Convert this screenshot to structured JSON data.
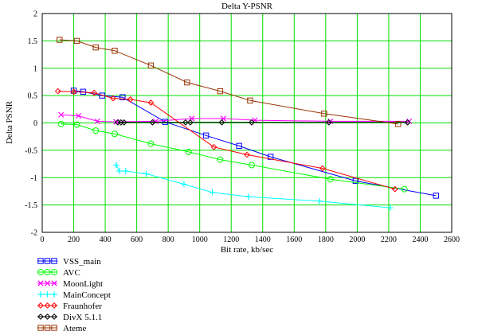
{
  "chart_data": {
    "type": "line",
    "title": "Delta Y-PSNR",
    "xlabel": "Bit rate, kb/sec",
    "ylabel": "Delta PSNR",
    "xlim": [
      0,
      2600
    ],
    "ylim": [
      -2,
      2
    ],
    "xticks": [
      0,
      200,
      400,
      600,
      800,
      1000,
      1200,
      1400,
      1600,
      1800,
      2000,
      2200,
      2400,
      2600
    ],
    "yticks": [
      2,
      1.5,
      1,
      0.5,
      0,
      -0.5,
      -1,
      -1.5,
      -2
    ],
    "grid": true,
    "legend_position": "bottom-left",
    "series": [
      {
        "name": "VSS_main",
        "color": "#0000ff",
        "marker": "square",
        "points": [
          [
            200,
            0.59
          ],
          [
            260,
            0.57
          ],
          [
            380,
            0.5
          ],
          [
            510,
            0.47
          ],
          [
            780,
            0.02
          ],
          [
            1040,
            -0.23
          ],
          [
            1250,
            -0.42
          ],
          [
            1450,
            -0.62
          ],
          [
            1990,
            -1.06
          ],
          [
            2500,
            -1.33
          ]
        ]
      },
      {
        "name": "AVC",
        "color": "#00ff00",
        "marker": "circle",
        "points": [
          [
            120,
            -0.02
          ],
          [
            220,
            -0.03
          ],
          [
            340,
            -0.14
          ],
          [
            460,
            -0.2
          ],
          [
            690,
            -0.38
          ],
          [
            930,
            -0.53
          ],
          [
            1130,
            -0.67
          ],
          [
            1330,
            -0.77
          ],
          [
            1830,
            -1.03
          ],
          [
            2300,
            -1.21
          ]
        ]
      },
      {
        "name": "MoonLight",
        "color": "#ff00ff",
        "marker": "x",
        "points": [
          [
            120,
            0.15
          ],
          [
            230,
            0.13
          ],
          [
            350,
            0.03
          ],
          [
            470,
            0.02
          ],
          [
            720,
            0.03
          ],
          [
            950,
            0.08
          ],
          [
            1150,
            0.08
          ],
          [
            1350,
            0.05
          ],
          [
            1830,
            0.03
          ],
          [
            2330,
            0.03
          ]
        ]
      },
      {
        "name": "MainConcept",
        "color": "#00ffff",
        "marker": "plus",
        "points": [
          [
            470,
            -0.77
          ],
          [
            490,
            -0.88
          ],
          [
            530,
            -0.88
          ],
          [
            660,
            -0.93
          ],
          [
            900,
            -1.12
          ],
          [
            1080,
            -1.27
          ],
          [
            1310,
            -1.35
          ],
          [
            1760,
            -1.43
          ],
          [
            2210,
            -1.55
          ]
        ]
      },
      {
        "name": "Fraunhofer",
        "color": "#ff0000",
        "marker": "diamond",
        "points": [
          [
            100,
            0.58
          ],
          [
            200,
            0.57
          ],
          [
            330,
            0.55
          ],
          [
            450,
            0.45
          ],
          [
            560,
            0.43
          ],
          [
            690,
            0.37
          ],
          [
            1090,
            -0.44
          ],
          [
            1300,
            -0.58
          ],
          [
            1780,
            -0.83
          ],
          [
            2240,
            -1.21
          ]
        ]
      },
      {
        "name": "DivX 5.1.1",
        "color": "#000000",
        "marker": "diamond",
        "points": [
          [
            480,
            0.01
          ],
          [
            500,
            0.01
          ],
          [
            520,
            0.01
          ],
          [
            700,
            0.01
          ],
          [
            910,
            0.01
          ],
          [
            940,
            0.01
          ],
          [
            1140,
            0.01
          ],
          [
            1330,
            0.01
          ],
          [
            1820,
            0.01
          ],
          [
            2320,
            0.01
          ]
        ]
      },
      {
        "name": "Ateme",
        "color": "#993300",
        "marker": "square",
        "points": [
          [
            110,
            1.52
          ],
          [
            220,
            1.5
          ],
          [
            340,
            1.38
          ],
          [
            460,
            1.32
          ],
          [
            690,
            1.05
          ],
          [
            920,
            0.74
          ],
          [
            1130,
            0.58
          ],
          [
            1320,
            0.41
          ],
          [
            1790,
            0.17
          ],
          [
            2260,
            -0.02
          ]
        ]
      }
    ]
  }
}
